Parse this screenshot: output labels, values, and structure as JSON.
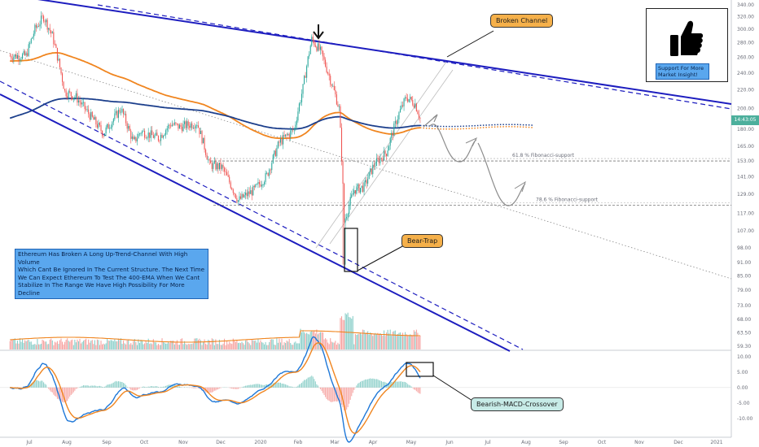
{
  "chart_data": [
    {
      "type": "candlestick",
      "x_labels": [
        "Jul",
        "Aug",
        "Sep",
        "Oct",
        "Nov",
        "Dec",
        "2020",
        "Feb",
        "Mar",
        "Apr",
        "May",
        "Jun",
        "Jul",
        "Aug",
        "Sep",
        "Oct",
        "Nov",
        "Dec",
        "2021"
      ],
      "y_tick_labels": [
        "340.00",
        "320.00",
        "300.00",
        "280.00",
        "260.00",
        "240.00",
        "220.00",
        "200.00",
        "180.00",
        "165.00",
        "153.00",
        "141.00",
        "129.00",
        "117.00",
        "107.00",
        "98.00",
        "91.00",
        "85.00",
        "79.00",
        "73.00",
        "68.00",
        "63.50",
        "59.30"
      ],
      "last_price": "14:43:05",
      "scale": "log",
      "price_path": [
        [
          "2019-07-01",
          262
        ],
        [
          "2019-07-08",
          300
        ],
        [
          "2019-07-15",
          320
        ],
        [
          "2019-07-22",
          290
        ],
        [
          "2019-08-01",
          218
        ],
        [
          "2019-08-10",
          212
        ],
        [
          "2019-08-20",
          195
        ],
        [
          "2019-09-01",
          176
        ],
        [
          "2019-09-15",
          200
        ],
        [
          "2019-09-25",
          168
        ],
        [
          "2019-10-01",
          178
        ],
        [
          "2019-10-15",
          172
        ],
        [
          "2019-10-25",
          185
        ],
        [
          "2019-11-01",
          182
        ],
        [
          "2019-11-15",
          186
        ],
        [
          "2019-11-25",
          150
        ],
        [
          "2019-12-05",
          148
        ],
        [
          "2019-12-18",
          125
        ],
        [
          "2019-12-31",
          132
        ],
        [
          "2020-01-10",
          142
        ],
        [
          "2020-01-20",
          168
        ],
        [
          "2020-02-01",
          180
        ],
        [
          "2020-02-08",
          222
        ],
        [
          "2020-02-15",
          285
        ],
        [
          "2020-02-22",
          268
        ],
        [
          "2020-03-01",
          232
        ],
        [
          "2020-03-08",
          200
        ],
        [
          "2020-03-12",
          112
        ],
        [
          "2020-03-20",
          132
        ],
        [
          "2020-03-28",
          134
        ],
        [
          "2020-04-05",
          150
        ],
        [
          "2020-04-15",
          160
        ],
        [
          "2020-04-25",
          195
        ],
        [
          "2020-05-01",
          212
        ],
        [
          "2020-05-08",
          205
        ],
        [
          "2020-05-12",
          190
        ]
      ],
      "ema_orange": "orange EMA",
      "ema_blue": "blue EMA (400-EMA)",
      "fib_levels": [
        {
          "label": "61.8 % Fibonacci-support",
          "price": 153
        },
        {
          "label": "78.6 % Fibonacci-support",
          "price": 122
        }
      ],
      "annotations": [
        "Broken Channel",
        "Bear-Trap",
        "Support For More\nMarket Insight!"
      ],
      "note": "Ethereum Has Broken A Long Up-Trend-Channel With High Volume\nWhich Cant Be Ignored In The Current Structure. The Next Time\nWe Can Expect Ethereum To Test The 400-EMA When We Cant\nStabilize In The Range We Have High Possibility For More Decline"
    },
    {
      "type": "macd",
      "y_tick_labels": [
        "10.00",
        "5.00",
        "0.00",
        "-5.00",
        "-10.00"
      ],
      "annotation": "Bearish-MACD-Crossover"
    }
  ],
  "colors": {
    "up": "#26a69a",
    "down": "#ef5350",
    "channel": "#1d1dbf",
    "ema_orange": "#f0851f",
    "ema_blue": "#1c3f8c",
    "macd": "#1f78d8",
    "signal": "#f0851f"
  },
  "icons": [
    "down-arrow-icon",
    "thumbs-up-icon"
  ]
}
